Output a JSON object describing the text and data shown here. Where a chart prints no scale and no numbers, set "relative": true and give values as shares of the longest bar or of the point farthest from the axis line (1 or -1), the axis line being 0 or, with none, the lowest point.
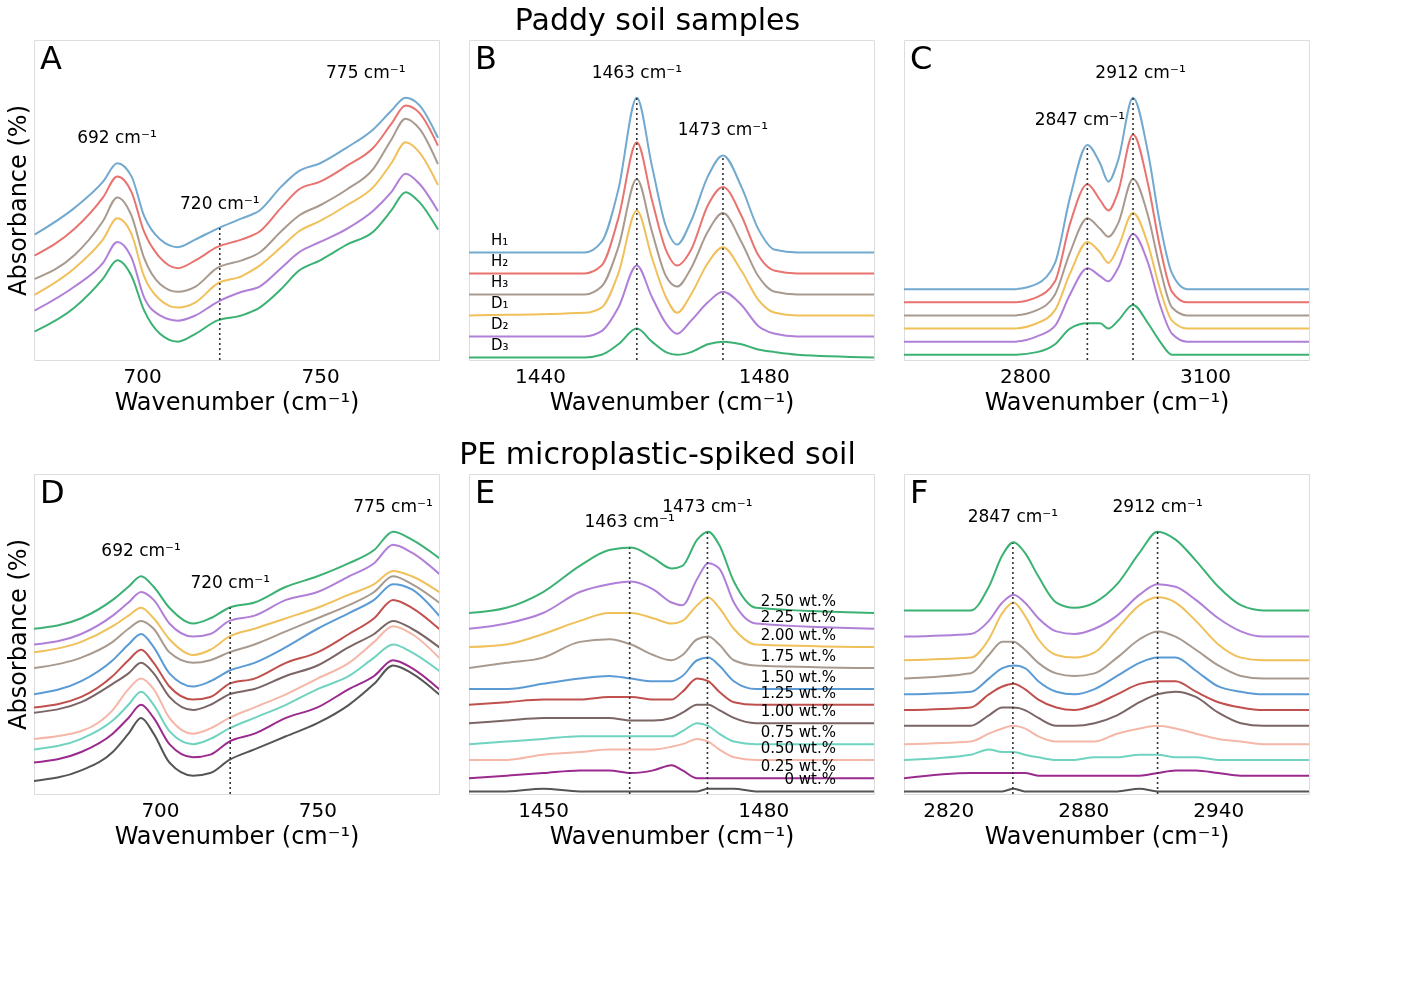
{
  "chart_data": [
    {
      "type": "line",
      "relative": true,
      "xlabel": "Wavenumber (cm⁻¹)",
      "ylabel": "Absorbance (%)",
      "xlim": [
        669.6,
        783.4
      ],
      "xticks": [
        700,
        750
      ],
      "grid": false,
      "line_style": "solid",
      "x": [
        670,
        681,
        689,
        693,
        697,
        700.5,
        705,
        710,
        715,
        721,
        728,
        733,
        739,
        744,
        750,
        757.5,
        765,
        770,
        774,
        778,
        783
      ],
      "series": [
        {
          "color": "#72a9cf",
          "values": [
            0.48,
            0.58,
            0.68,
            0.75,
            0.7,
            0.55,
            0.46,
            0.43,
            0.46,
            0.5,
            0.54,
            0.57,
            0.66,
            0.72,
            0.75,
            0.81,
            0.88,
            0.95,
            1.0,
            0.97,
            0.85
          ]
        },
        {
          "color": "#e8736f",
          "values": [
            0.4,
            0.5,
            0.62,
            0.7,
            0.64,
            0.49,
            0.39,
            0.35,
            0.38,
            0.43,
            0.46,
            0.49,
            0.58,
            0.65,
            0.68,
            0.74,
            0.81,
            0.9,
            0.97,
            0.94,
            0.82
          ]
        },
        {
          "color": "#a89a8f",
          "values": [
            0.31,
            0.4,
            0.53,
            0.62,
            0.55,
            0.39,
            0.29,
            0.26,
            0.28,
            0.35,
            0.38,
            0.41,
            0.49,
            0.55,
            0.59,
            0.65,
            0.73,
            0.84,
            0.92,
            0.88,
            0.75
          ]
        },
        {
          "color": "#f0c05a",
          "values": [
            0.25,
            0.35,
            0.46,
            0.54,
            0.48,
            0.32,
            0.23,
            0.2,
            0.22,
            0.29,
            0.32,
            0.36,
            0.43,
            0.49,
            0.53,
            0.59,
            0.66,
            0.75,
            0.83,
            0.79,
            0.67
          ]
        },
        {
          "color": "#b07fd8",
          "values": [
            0.19,
            0.28,
            0.37,
            0.45,
            0.39,
            0.24,
            0.17,
            0.15,
            0.17,
            0.22,
            0.26,
            0.28,
            0.35,
            0.41,
            0.45,
            0.5,
            0.57,
            0.64,
            0.71,
            0.67,
            0.57
          ]
        },
        {
          "color": "#3bb273",
          "values": [
            0.11,
            0.2,
            0.31,
            0.38,
            0.32,
            0.19,
            0.1,
            0.07,
            0.1,
            0.15,
            0.17,
            0.2,
            0.27,
            0.34,
            0.38,
            0.44,
            0.49,
            0.57,
            0.64,
            0.6,
            0.5
          ]
        }
      ],
      "ref_lines": [
        {
          "axis": "x",
          "value": 721.8,
          "line_style": "dotted"
        }
      ],
      "annotations": [
        "A",
        {
          "text": "692 cm⁻¹",
          "x": 692.9,
          "y": 0.75
        },
        {
          "text": "720 cm⁻¹",
          "x": 721.8,
          "y": 0.5
        },
        {
          "text": "775 cm⁻¹",
          "x": 774,
          "y": 1.0
        }
      ]
    },
    {
      "type": "line",
      "relative": true,
      "title": "Paddy soil samples",
      "xlabel": "Wavenumber (cm⁻¹)",
      "xlim": [
        1427.3,
        1499.7
      ],
      "xticks": [
        1440,
        1480
      ],
      "grid": false,
      "line_style": "solid",
      "x": [
        1427.3,
        1448,
        1451,
        1454,
        1457.3,
        1460,
        1462.5,
        1464.5,
        1467,
        1470,
        1472.7,
        1476,
        1479,
        1482,
        1486,
        1499.7
      ],
      "series": [
        {
          "name": "H₁",
          "color": "#72a9cf",
          "values": [
            0.41,
            0.41,
            0.45,
            0.65,
            1.0,
            0.74,
            0.51,
            0.44,
            0.53,
            0.7,
            0.78,
            0.66,
            0.5,
            0.42,
            0.41,
            0.41
          ]
        },
        {
          "name": "H₂",
          "color": "#e8736f",
          "values": [
            0.33,
            0.33,
            0.36,
            0.54,
            0.83,
            0.61,
            0.42,
            0.36,
            0.42,
            0.59,
            0.66,
            0.55,
            0.4,
            0.34,
            0.33,
            0.33
          ]
        },
        {
          "name": "H₃",
          "color": "#a89a8f",
          "values": [
            0.25,
            0.25,
            0.28,
            0.43,
            0.69,
            0.49,
            0.32,
            0.28,
            0.35,
            0.49,
            0.56,
            0.45,
            0.32,
            0.26,
            0.25,
            0.25
          ]
        },
        {
          "name": "D₁",
          "color": "#f0c05a",
          "values": [
            0.17,
            0.18,
            0.2,
            0.33,
            0.57,
            0.39,
            0.24,
            0.18,
            0.25,
            0.37,
            0.43,
            0.34,
            0.23,
            0.18,
            0.17,
            0.17
          ]
        },
        {
          "name": "D₂",
          "color": "#b07fd8",
          "values": [
            0.09,
            0.09,
            0.11,
            0.2,
            0.36,
            0.24,
            0.14,
            0.1,
            0.15,
            0.22,
            0.26,
            0.21,
            0.13,
            0.1,
            0.09,
            0.09
          ]
        },
        {
          "name": "D₃",
          "color": "#3bb273",
          "values": [
            0.01,
            0.01,
            0.02,
            0.06,
            0.12,
            0.07,
            0.03,
            0.02,
            0.03,
            0.06,
            0.07,
            0.06,
            0.04,
            0.03,
            0.02,
            0.01
          ]
        }
      ],
      "ref_lines": [
        {
          "axis": "x",
          "value": 1457.3,
          "line_style": "dotted"
        },
        {
          "axis": "x",
          "value": 1472.7,
          "line_style": "dotted"
        }
      ],
      "annotations": [
        "B",
        {
          "text": "1463 cm⁻¹",
          "x": 1457.3,
          "y": 1.0
        },
        {
          "text": "1473 cm⁻¹",
          "x": 1472.7,
          "y": 0.78
        }
      ]
    },
    {
      "type": "line",
      "relative": true,
      "xlabel": "Wavenumber (cm⁻¹)",
      "xlim": [
        2598.3,
        3273.3
      ],
      "xticks": [
        2800,
        3100
      ],
      "grid": false,
      "line_style": "solid",
      "x": [
        2598.3,
        2780,
        2820,
        2850,
        2875,
        2904,
        2925,
        2939,
        2955,
        2980,
        3005,
        3025,
        3045,
        3070,
        3273.3
      ],
      "series": [
        {
          "color": "#72a9cf",
          "values": [
            0.27,
            0.27,
            0.29,
            0.37,
            0.62,
            0.82,
            0.75,
            0.68,
            0.76,
            1.0,
            0.79,
            0.52,
            0.33,
            0.27,
            0.27
          ]
        },
        {
          "color": "#e8736f",
          "values": [
            0.22,
            0.22,
            0.24,
            0.3,
            0.52,
            0.67,
            0.61,
            0.57,
            0.64,
            0.86,
            0.67,
            0.43,
            0.26,
            0.22,
            0.22
          ]
        },
        {
          "color": "#a89a8f",
          "values": [
            0.17,
            0.17,
            0.19,
            0.25,
            0.41,
            0.54,
            0.5,
            0.47,
            0.52,
            0.69,
            0.55,
            0.35,
            0.2,
            0.17,
            0.17
          ]
        },
        {
          "color": "#f0c05a",
          "values": [
            0.12,
            0.12,
            0.14,
            0.19,
            0.33,
            0.45,
            0.41,
            0.37,
            0.43,
            0.56,
            0.44,
            0.27,
            0.15,
            0.12,
            0.12
          ]
        },
        {
          "color": "#b07fd8",
          "values": [
            0.07,
            0.07,
            0.09,
            0.13,
            0.25,
            0.35,
            0.32,
            0.3,
            0.35,
            0.48,
            0.37,
            0.21,
            0.1,
            0.07,
            0.07
          ]
        },
        {
          "color": "#3bb273",
          "values": [
            0.02,
            0.02,
            0.03,
            0.06,
            0.12,
            0.14,
            0.14,
            0.12,
            0.15,
            0.21,
            0.14,
            0.07,
            0.02,
            0.02,
            0.02
          ]
        }
      ],
      "ref_lines": [
        {
          "axis": "x",
          "value": 2903.9,
          "line_style": "dotted"
        },
        {
          "axis": "x",
          "value": 2980,
          "line_style": "dotted"
        }
      ],
      "annotations": [
        "C",
        {
          "text": "2847 cm⁻¹",
          "x": 2903.9,
          "y": 0.82
        },
        {
          "text": "2912 cm⁻¹",
          "x": 2980,
          "y": 1.0
        }
      ]
    },
    {
      "type": "line",
      "relative": true,
      "xlabel": "Wavenumber (cm⁻¹)",
      "ylabel": "Absorbance (%)",
      "xlim": [
        660,
        788.6
      ],
      "xticks": [
        700,
        750
      ],
      "grid": false,
      "line_style": "solid",
      "x": [
        660,
        675,
        685,
        690,
        694,
        698,
        703,
        710.5,
        716,
        722,
        730,
        740,
        750,
        760,
        768,
        774,
        780,
        788.6
      ],
      "series": [
        {
          "color": "#3bb273",
          "values": [
            0.63,
            0.67,
            0.74,
            0.79,
            0.83,
            0.79,
            0.71,
            0.65,
            0.67,
            0.71,
            0.73,
            0.79,
            0.83,
            0.88,
            0.93,
            1.0,
            0.97,
            0.9
          ]
        },
        {
          "color": "#b07fd8",
          "values": [
            0.57,
            0.61,
            0.68,
            0.73,
            0.77,
            0.74,
            0.65,
            0.6,
            0.61,
            0.66,
            0.68,
            0.74,
            0.77,
            0.83,
            0.88,
            0.95,
            0.92,
            0.84
          ]
        },
        {
          "color": "#f0c05a",
          "values": [
            0.54,
            0.58,
            0.64,
            0.68,
            0.71,
            0.67,
            0.59,
            0.53,
            0.55,
            0.6,
            0.63,
            0.67,
            0.71,
            0.76,
            0.8,
            0.85,
            0.83,
            0.77
          ]
        },
        {
          "color": "#a89a8f",
          "values": [
            0.48,
            0.52,
            0.58,
            0.63,
            0.66,
            0.63,
            0.54,
            0.5,
            0.51,
            0.54,
            0.57,
            0.62,
            0.67,
            0.72,
            0.77,
            0.83,
            0.8,
            0.73
          ]
        },
        {
          "color": "#5b9bd5",
          "values": [
            0.38,
            0.43,
            0.51,
            0.57,
            0.61,
            0.56,
            0.46,
            0.41,
            0.43,
            0.47,
            0.5,
            0.56,
            0.63,
            0.69,
            0.74,
            0.8,
            0.78,
            0.68
          ]
        },
        {
          "color": "#c0504d",
          "values": [
            0.33,
            0.37,
            0.45,
            0.51,
            0.55,
            0.5,
            0.41,
            0.36,
            0.37,
            0.42,
            0.44,
            0.5,
            0.54,
            0.61,
            0.67,
            0.74,
            0.71,
            0.63
          ]
        },
        {
          "color": "#7b6565",
          "values": [
            0.31,
            0.35,
            0.42,
            0.46,
            0.5,
            0.46,
            0.37,
            0.32,
            0.34,
            0.38,
            0.4,
            0.45,
            0.49,
            0.56,
            0.61,
            0.66,
            0.63,
            0.56
          ]
        },
        {
          "color": "#f5b7a8",
          "values": [
            0.21,
            0.24,
            0.32,
            0.4,
            0.44,
            0.4,
            0.29,
            0.23,
            0.25,
            0.29,
            0.33,
            0.38,
            0.44,
            0.5,
            0.58,
            0.64,
            0.61,
            0.52
          ]
        },
        {
          "color": "#6fd3c0",
          "values": [
            0.17,
            0.21,
            0.28,
            0.34,
            0.39,
            0.34,
            0.24,
            0.19,
            0.21,
            0.25,
            0.29,
            0.34,
            0.4,
            0.45,
            0.52,
            0.57,
            0.54,
            0.47
          ]
        },
        {
          "color": "#9b2a8f",
          "values": [
            0.12,
            0.16,
            0.23,
            0.29,
            0.34,
            0.29,
            0.19,
            0.14,
            0.15,
            0.2,
            0.23,
            0.29,
            0.33,
            0.4,
            0.45,
            0.51,
            0.48,
            0.4
          ]
        },
        {
          "color": "#555555",
          "values": [
            0.05,
            0.09,
            0.16,
            0.23,
            0.29,
            0.23,
            0.12,
            0.07,
            0.08,
            0.13,
            0.17,
            0.22,
            0.27,
            0.34,
            0.42,
            0.49,
            0.46,
            0.38
          ]
        }
      ],
      "ref_lines": [
        {
          "axis": "x",
          "value": 722.3,
          "line_style": "dotted"
        }
      ],
      "annotations": [
        "D",
        {
          "text": "692 cm⁻¹",
          "x": 694,
          "y": 0.83
        },
        {
          "text": "720 cm⁻¹",
          "x": 722.3,
          "y": 0.71
        },
        {
          "text": "775 cm⁻¹",
          "x": 774,
          "y": 1.0
        }
      ]
    },
    {
      "type": "line",
      "relative": true,
      "title": "PE microplastic-spiked soil",
      "xlabel": "Wavenumber (cm⁻¹)",
      "xlim": [
        1439.9,
        1495.1
      ],
      "xticks": [
        1450,
        1480
      ],
      "grid": false,
      "line_style": "solid",
      "x": [
        1439.9,
        1445,
        1450,
        1455,
        1459,
        1462,
        1465,
        1467.5,
        1469,
        1471,
        1472.5,
        1474,
        1476,
        1479,
        1495.1
      ],
      "series": [
        {
          "name": "2.50 wt.%",
          "color": "#3bb273",
          "values": [
            0.69,
            0.71,
            0.77,
            0.87,
            0.93,
            0.94,
            0.9,
            0.86,
            0.87,
            0.97,
            1.0,
            0.95,
            0.81,
            0.71,
            0.69
          ]
        },
        {
          "name": "2.25 wt.%",
          "color": "#b07fd8",
          "values": [
            0.63,
            0.65,
            0.69,
            0.77,
            0.8,
            0.81,
            0.78,
            0.73,
            0.72,
            0.82,
            0.88,
            0.86,
            0.73,
            0.65,
            0.63
          ]
        },
        {
          "name": "2.00 wt.%",
          "color": "#f0c05a",
          "values": [
            0.56,
            0.57,
            0.61,
            0.66,
            0.69,
            0.69,
            0.67,
            0.65,
            0.66,
            0.72,
            0.75,
            0.71,
            0.63,
            0.57,
            0.56
          ]
        },
        {
          "name": "1.75 wt.%",
          "color": "#a89a8f",
          "values": [
            0.48,
            0.5,
            0.52,
            0.58,
            0.59,
            0.57,
            0.53,
            0.51,
            0.53,
            0.59,
            0.6,
            0.57,
            0.51,
            0.49,
            0.48
          ]
        },
        {
          "name": "1.50 wt.%",
          "color": "#5b9bd5",
          "values": [
            0.4,
            0.4,
            0.42,
            0.44,
            0.45,
            0.44,
            0.43,
            0.43,
            0.45,
            0.51,
            0.52,
            0.49,
            0.43,
            0.4,
            0.4
          ]
        },
        {
          "name": "1.25 wt.%",
          "color": "#c0504d",
          "values": [
            0.34,
            0.35,
            0.36,
            0.36,
            0.37,
            0.37,
            0.36,
            0.36,
            0.39,
            0.44,
            0.43,
            0.39,
            0.35,
            0.34,
            0.34
          ]
        },
        {
          "name": "1.00 wt.%",
          "color": "#7b6565",
          "values": [
            0.27,
            0.28,
            0.29,
            0.29,
            0.29,
            0.28,
            0.28,
            0.29,
            0.31,
            0.34,
            0.34,
            0.32,
            0.29,
            0.27,
            0.27
          ]
        },
        {
          "name": "0.75 wt.%",
          "color": "#6fd3c0",
          "values": [
            0.19,
            0.2,
            0.21,
            0.22,
            0.22,
            0.22,
            0.22,
            0.22,
            0.24,
            0.27,
            0.26,
            0.23,
            0.2,
            0.19,
            0.19
          ]
        },
        {
          "name": "0.50 wt.%",
          "color": "#f5b7a8",
          "values": [
            0.13,
            0.13,
            0.15,
            0.16,
            0.17,
            0.17,
            0.17,
            0.18,
            0.19,
            0.21,
            0.2,
            0.17,
            0.14,
            0.13,
            0.13
          ]
        },
        {
          "name": "0.25 wt.%",
          "color": "#9b2a8f",
          "values": [
            0.06,
            0.07,
            0.08,
            0.09,
            0.09,
            0.08,
            0.09,
            0.11,
            0.09,
            0.06,
            0.06,
            0.06,
            0.06,
            0.06,
            0.06
          ]
        },
        {
          "name": "0 wt.%",
          "color": "#555555",
          "values": [
            0.01,
            0.01,
            0.02,
            0.01,
            0.01,
            0.01,
            0.01,
            0.01,
            0.01,
            0.01,
            0.02,
            0.02,
            0.02,
            0.01,
            0.01
          ]
        }
      ],
      "ref_lines": [
        {
          "axis": "x",
          "value": 1461.8,
          "line_style": "dotted"
        },
        {
          "axis": "x",
          "value": 1472.4,
          "line_style": "dotted"
        }
      ],
      "annotations": [
        "E",
        {
          "text": "1463 cm⁻¹",
          "x": 1461.8,
          "y": 0.94
        },
        {
          "text": "1473 cm⁻¹",
          "x": 1472.4,
          "y": 1.0
        }
      ]
    },
    {
      "type": "line",
      "relative": true,
      "xlabel": "Wavenumber (cm⁻¹)",
      "xlim": [
        2800.3,
        2980.3
      ],
      "xticks": [
        2820,
        2880,
        2940
      ],
      "grid": false,
      "line_style": "solid",
      "x": [
        2800.3,
        2830,
        2838,
        2844,
        2849,
        2854,
        2860,
        2868,
        2876,
        2885,
        2895,
        2905,
        2913,
        2921,
        2930,
        2940,
        2950,
        2960,
        2980.3
      ],
      "series": [
        {
          "color": "#3bb273",
          "values": [
            0.7,
            0.7,
            0.79,
            0.91,
            0.96,
            0.92,
            0.83,
            0.73,
            0.71,
            0.73,
            0.8,
            0.92,
            1.0,
            0.97,
            0.89,
            0.79,
            0.72,
            0.7,
            0.7
          ]
        },
        {
          "color": "#b07fd8",
          "values": [
            0.6,
            0.61,
            0.66,
            0.73,
            0.76,
            0.73,
            0.67,
            0.62,
            0.61,
            0.63,
            0.68,
            0.76,
            0.8,
            0.79,
            0.74,
            0.67,
            0.62,
            0.6,
            0.6
          ]
        },
        {
          "color": "#f0c05a",
          "values": [
            0.51,
            0.52,
            0.59,
            0.69,
            0.73,
            0.68,
            0.59,
            0.53,
            0.52,
            0.54,
            0.63,
            0.72,
            0.75,
            0.73,
            0.66,
            0.57,
            0.52,
            0.51,
            0.51
          ]
        },
        {
          "color": "#a89a8f",
          "values": [
            0.44,
            0.46,
            0.53,
            0.58,
            0.58,
            0.55,
            0.5,
            0.46,
            0.45,
            0.46,
            0.52,
            0.59,
            0.62,
            0.6,
            0.55,
            0.49,
            0.45,
            0.44,
            0.44
          ]
        },
        {
          "color": "#5b9bd5",
          "values": [
            0.38,
            0.39,
            0.44,
            0.48,
            0.49,
            0.48,
            0.43,
            0.39,
            0.38,
            0.4,
            0.45,
            0.5,
            0.52,
            0.52,
            0.47,
            0.41,
            0.39,
            0.38,
            0.38
          ]
        },
        {
          "color": "#c0504d",
          "values": [
            0.32,
            0.33,
            0.38,
            0.41,
            0.42,
            0.4,
            0.36,
            0.33,
            0.32,
            0.34,
            0.38,
            0.42,
            0.43,
            0.43,
            0.39,
            0.35,
            0.33,
            0.32,
            0.32
          ]
        },
        {
          "color": "#7b6565",
          "values": [
            0.26,
            0.26,
            0.3,
            0.33,
            0.33,
            0.32,
            0.29,
            0.26,
            0.26,
            0.27,
            0.3,
            0.35,
            0.38,
            0.39,
            0.37,
            0.31,
            0.27,
            0.26,
            0.26
          ]
        },
        {
          "color": "#f5b7a8",
          "values": [
            0.19,
            0.2,
            0.23,
            0.25,
            0.26,
            0.25,
            0.22,
            0.2,
            0.2,
            0.2,
            0.23,
            0.25,
            0.26,
            0.25,
            0.23,
            0.21,
            0.2,
            0.19,
            0.19
          ]
        },
        {
          "color": "#6fd3c0",
          "values": [
            0.13,
            0.15,
            0.17,
            0.16,
            0.16,
            0.15,
            0.14,
            0.13,
            0.13,
            0.14,
            0.14,
            0.15,
            0.15,
            0.14,
            0.14,
            0.13,
            0.13,
            0.13,
            0.13
          ]
        },
        {
          "color": "#9b2a8f",
          "values": [
            0.06,
            0.08,
            0.08,
            0.08,
            0.08,
            0.08,
            0.07,
            0.07,
            0.07,
            0.07,
            0.07,
            0.07,
            0.08,
            0.09,
            0.09,
            0.08,
            0.07,
            0.07,
            0.07
          ]
        },
        {
          "color": "#555555",
          "values": [
            0.01,
            0.01,
            0.01,
            0.01,
            0.02,
            0.01,
            0.01,
            0.01,
            0.01,
            0.01,
            0.01,
            0.02,
            0.01,
            0.01,
            0.01,
            0.01,
            0.01,
            0.01,
            0.01
          ]
        }
      ],
      "ref_lines": [
        {
          "axis": "x",
          "value": 2848.7,
          "line_style": "dotted"
        },
        {
          "axis": "x",
          "value": 2913,
          "line_style": "dotted"
        }
      ],
      "annotations": [
        "F",
        {
          "text": "2847 cm⁻¹",
          "x": 2848.7,
          "y": 0.96
        },
        {
          "text": "2912 cm⁻¹",
          "x": 2913,
          "y": 1.0
        }
      ]
    }
  ]
}
